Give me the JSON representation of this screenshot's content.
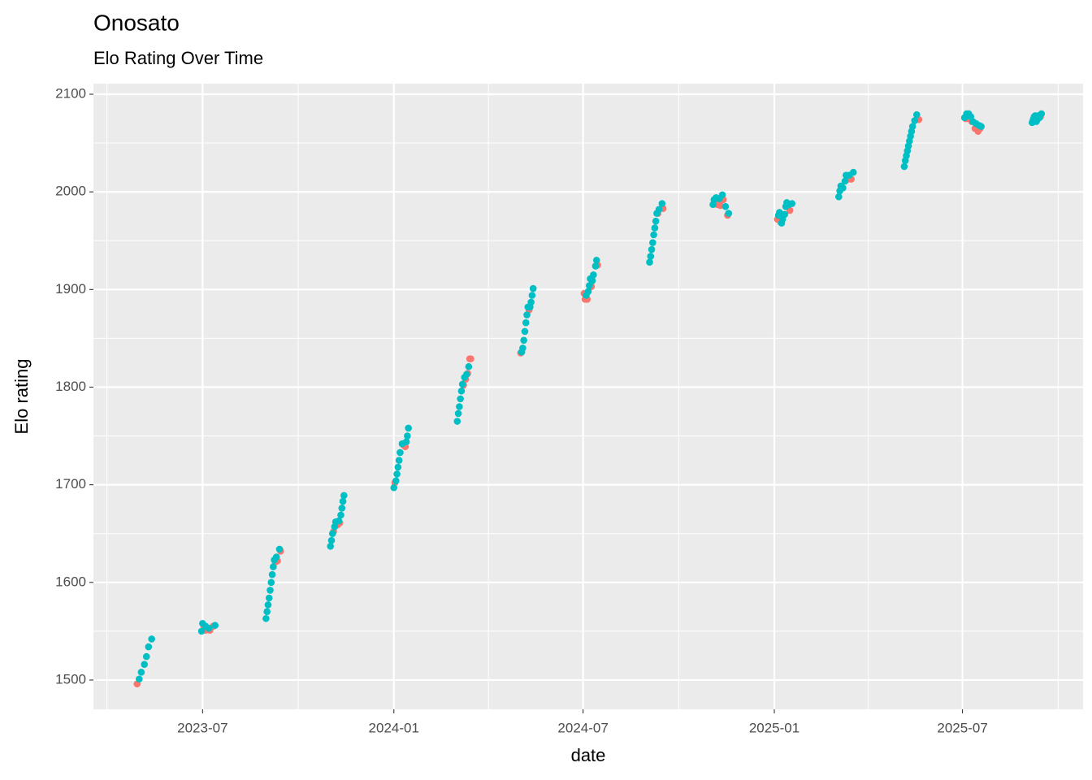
{
  "chart_data": {
    "type": "scatter",
    "title": "Onosato",
    "subtitle": "Elo Rating Over Time",
    "x_label": "date",
    "y_label": "Elo rating",
    "xlim": [
      19434,
      20386
    ],
    "xticks": [
      {
        "value": 19539,
        "label": "2023-07"
      },
      {
        "value": 19723,
        "label": "2024-01"
      },
      {
        "value": 19905,
        "label": "2024-07"
      },
      {
        "value": 20089,
        "label": "2025-01"
      },
      {
        "value": 20270,
        "label": "2025-07"
      }
    ],
    "ylim": [
      1470,
      2110.8
    ],
    "yticks": [
      1500,
      1600,
      1700,
      1800,
      1900,
      2000,
      2100
    ],
    "grid": true,
    "series": [
      {
        "color": "#F8766D",
        "x": [
          19476,
          19540,
          19542,
          19546,
          19549,
          19609,
          19611,
          19614,
          19665,
          19669,
          19671,
          19724,
          19733,
          19734,
          19790,
          19792,
          19794,
          19797,
          19796,
          19845,
          19853,
          19906,
          19907,
          19909,
          19913,
          19919,
          19977,
          19982,
          20034,
          20037,
          20040,
          20044,
          20092,
          20095,
          20104,
          20160,
          20163,
          20228,
          20273,
          20275,
          20279,
          20282,
          20285,
          20287,
          20345
        ],
        "values": [
          1496,
          1556,
          1551,
          1551,
          1555,
          1621,
          1622,
          1632,
          1652,
          1659,
          1661,
          1702,
          1740,
          1739,
          1802,
          1808,
          1814,
          1829,
          1829,
          1835,
          1879,
          1896,
          1890,
          1890,
          1903,
          1925,
          1978,
          1983,
          1987,
          1986,
          1992,
          1976,
          1972,
          1969,
          1981,
          2013,
          2013,
          2074,
          2075,
          2075,
          2072,
          2065,
          2062,
          2065,
          2077
        ]
      },
      {
        "color": "#00BFC4",
        "x": [
          19478,
          19480,
          19483,
          19485,
          19487,
          19490,
          19538,
          19539,
          19542,
          19545,
          19551,
          19600,
          19601,
          19602,
          19603,
          19604,
          19605,
          19606,
          19607,
          19608,
          19610,
          19613,
          19662,
          19663,
          19664,
          19666,
          19667,
          19670,
          19672,
          19673,
          19674,
          19675,
          19723,
          19725,
          19726,
          19727,
          19728,
          19729,
          19731,
          19735,
          19736,
          19737,
          19784,
          19785,
          19786,
          19787,
          19788,
          19789,
          19791,
          19793,
          19795,
          19846,
          19847,
          19848,
          19849,
          19850,
          19851,
          19852,
          19854,
          19855,
          19856,
          19857,
          19908,
          19910,
          19911,
          19912,
          19914,
          19915,
          19917,
          19918,
          19969,
          19970,
          19971,
          19972,
          19973,
          19974,
          19975,
          19976,
          19978,
          19981,
          20030,
          20031,
          20033,
          20036,
          20039,
          20042,
          20045,
          20093,
          20094,
          20096,
          20097,
          20099,
          20100,
          20101,
          20103,
          20106,
          20151,
          20152,
          20153,
          20155,
          20157,
          20158,
          20161,
          20165,
          20214,
          20215,
          20216,
          20217,
          20218,
          20219,
          20220,
          20221,
          20222,
          20224,
          20226,
          20272,
          20274,
          20276,
          20278,
          20280,
          20283,
          20286,
          20288,
          20337,
          20338,
          20339,
          20340,
          20341,
          20342,
          20343,
          20344,
          20346
        ],
        "values": [
          1501,
          1508,
          1516,
          1524,
          1534,
          1542,
          1550,
          1558,
          1555,
          1553,
          1556,
          1563,
          1570,
          1577,
          1584,
          1592,
          1600,
          1608,
          1616,
          1623,
          1626,
          1634,
          1637,
          1643,
          1650,
          1657,
          1662,
          1663,
          1669,
          1676,
          1683,
          1689,
          1697,
          1704,
          1711,
          1718,
          1725,
          1733,
          1742,
          1744,
          1750,
          1758,
          1765,
          1773,
          1780,
          1788,
          1796,
          1803,
          1810,
          1813,
          1821,
          1836,
          1840,
          1848,
          1857,
          1866,
          1874,
          1882,
          1882,
          1887,
          1894,
          1901,
          1894,
          1898,
          1904,
          1911,
          1909,
          1915,
          1924,
          1930,
          1928,
          1934,
          1941,
          1948,
          1956,
          1963,
          1970,
          1978,
          1982,
          1988,
          1987,
          1992,
          1994,
          1993,
          1997,
          1985,
          1978,
          1976,
          1979,
          1968,
          1972,
          1977,
          1985,
          1989,
          1987,
          1988,
          1995,
          2001,
          2006,
          2004,
          2011,
          2017,
          2017,
          2020,
          2026,
          2032,
          2037,
          2042,
          2047,
          2052,
          2057,
          2062,
          2067,
          2073,
          2079,
          2076,
          2080,
          2080,
          2077,
          2072,
          2070,
          2068,
          2067,
          2071,
          2074,
          2077,
          2078,
          2072,
          2074,
          2078,
          2076,
          2080
        ]
      }
    ]
  }
}
